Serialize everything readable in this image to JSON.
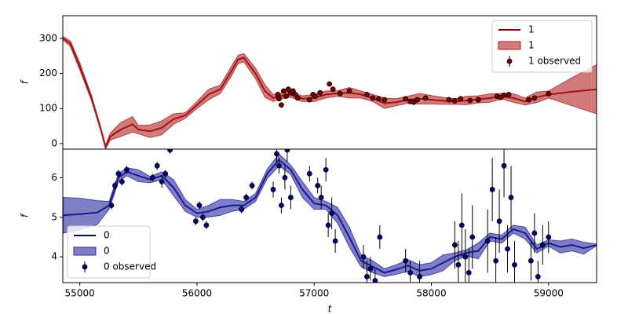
{
  "chart_data": [
    {
      "type": "line",
      "ylabel": "f",
      "xlim": [
        54855,
        59410
      ],
      "ylim": [
        -16,
        365
      ],
      "yticks": [
        0,
        100,
        200,
        300
      ],
      "legend": "upper right",
      "series": [
        {
          "name": "1",
          "color": "#800000",
          "x": [
            54860,
            54920,
            55000,
            55100,
            55180,
            55220,
            55260,
            55350,
            55450,
            55500,
            55600,
            55700,
            55800,
            55900,
            56000,
            56100,
            56200,
            56300,
            56350,
            56400,
            56500,
            56580,
            56650,
            56700,
            56800,
            56900,
            57000,
            57100,
            57200,
            57300,
            57400,
            57500,
            57600,
            57700,
            57800,
            57900,
            58000,
            58100,
            58200,
            58300,
            58400,
            58500,
            58600,
            58700,
            58800,
            58900,
            59000,
            59200,
            59410
          ],
          "values": [
            300,
            285,
            220,
            130,
            40,
            -10,
            20,
            40,
            55,
            40,
            35,
            45,
            70,
            80,
            110,
            140,
            155,
            210,
            240,
            245,
            200,
            150,
            130,
            135,
            140,
            128,
            130,
            140,
            143,
            145,
            140,
            130,
            115,
            118,
            125,
            128,
            125,
            122,
            120,
            123,
            126,
            130,
            135,
            130,
            120,
            132,
            140,
            148,
            155
          ]
        },
        {
          "name": "1",
          "color": "#b22222",
          "type": "band",
          "x": [
            54860,
            54920,
            55000,
            55100,
            55180,
            55220,
            55260,
            55350,
            55450,
            55500,
            55600,
            55700,
            55800,
            55900,
            56000,
            56100,
            56200,
            56300,
            56350,
            56400,
            56500,
            56580,
            56650,
            56700,
            56800,
            56900,
            57000,
            57100,
            57200,
            57300,
            57400,
            57500,
            57600,
            57700,
            57800,
            57900,
            58000,
            58100,
            58200,
            58300,
            58400,
            58500,
            58600,
            58700,
            58800,
            58900,
            59000,
            59200,
            59410
          ],
          "lower": [
            295,
            277,
            210,
            122,
            34,
            -16,
            10,
            20,
            33,
            28,
            17,
            25,
            55,
            72,
            100,
            125,
            143,
            196,
            228,
            233,
            185,
            132,
            120,
            127,
            132,
            120,
            120,
            130,
            135,
            130,
            130,
            120,
            100,
            108,
            115,
            113,
            113,
            112,
            112,
            111,
            116,
            118,
            127,
            118,
            110,
            117,
            130,
            108,
            85
          ],
          "upper": [
            305,
            293,
            230,
            138,
            46,
            -4,
            30,
            60,
            77,
            52,
            53,
            65,
            85,
            88,
            120,
            155,
            167,
            224,
            252,
            257,
            215,
            168,
            140,
            143,
            148,
            136,
            140,
            150,
            151,
            160,
            150,
            140,
            130,
            128,
            135,
            143,
            137,
            132,
            128,
            135,
            136,
            142,
            143,
            142,
            130,
            147,
            150,
            188,
            225
          ]
        },
        {
          "name": "1 observed",
          "color": "#800000",
          "type": "errorbar",
          "x": [
            56690,
            56700,
            56720,
            56740,
            56760,
            56780,
            56800,
            56820,
            56840,
            56860,
            56960,
            56990,
            57010,
            57050,
            57130,
            57160,
            57220,
            57300,
            57450,
            57500,
            57550,
            57600,
            57780,
            57820,
            57850,
            57880,
            57950,
            58150,
            58200,
            58250,
            58330,
            58400,
            58560,
            58590,
            58620,
            58660,
            58830,
            58880,
            59000
          ],
          "values": [
            140,
            128,
            110,
            150,
            135,
            155,
            145,
            150,
            140,
            130,
            125,
            140,
            135,
            145,
            170,
            155,
            143,
            150,
            140,
            130,
            128,
            125,
            128,
            120,
            118,
            125,
            130,
            125,
            122,
            128,
            123,
            125,
            135,
            132,
            138,
            140,
            125,
            130,
            142
          ]
        }
      ]
    },
    {
      "type": "line",
      "ylabel": "f",
      "xlabel": "t",
      "xlim": [
        54855,
        59410
      ],
      "ylim": [
        3.35,
        6.72
      ],
      "yticks": [
        4,
        5,
        6
      ],
      "xticks": [
        55000,
        56000,
        57000,
        58000,
        59000
      ],
      "legend": "lower left",
      "series": [
        {
          "name": "0",
          "color": "#000080",
          "x": [
            54860,
            55000,
            55150,
            55250,
            55330,
            55400,
            55500,
            55600,
            55700,
            55800,
            55900,
            56000,
            56100,
            56200,
            56300,
            56400,
            56500,
            56600,
            56700,
            56800,
            56900,
            57000,
            57100,
            57200,
            57300,
            57400,
            57500,
            57600,
            57700,
            57800,
            57900,
            58000,
            58100,
            58200,
            58300,
            58400,
            58500,
            58600,
            58700,
            58800,
            58900,
            59000,
            59100,
            59200,
            59300,
            59410
          ],
          "values": [
            5.05,
            5.08,
            5.12,
            5.3,
            6.0,
            6.15,
            6.05,
            5.95,
            6.05,
            5.75,
            5.3,
            5.1,
            5.15,
            5.25,
            5.3,
            5.3,
            5.5,
            6.1,
            6.45,
            6.2,
            5.7,
            5.35,
            5.3,
            5.05,
            4.5,
            3.9,
            3.75,
            3.6,
            3.68,
            3.78,
            3.65,
            3.7,
            3.85,
            4.0,
            4.1,
            4.15,
            4.5,
            4.45,
            4.7,
            4.6,
            4.2,
            4.35,
            4.25,
            4.3,
            4.22,
            4.3
          ]
        },
        {
          "name": "0",
          "color": "#2a2aa0",
          "type": "band",
          "x": [
            54860,
            55000,
            55150,
            55250,
            55330,
            55400,
            55500,
            55600,
            55700,
            55800,
            55900,
            56000,
            56100,
            56200,
            56300,
            56400,
            56500,
            56600,
            56700,
            56800,
            56900,
            57000,
            57100,
            57200,
            57300,
            57400,
            57500,
            57600,
            57700,
            57800,
            57900,
            58000,
            58100,
            58200,
            58300,
            58400,
            58500,
            58600,
            58700,
            58800,
            58900,
            59000,
            59100,
            59200,
            59300,
            59410
          ],
          "lower": [
            4.6,
            4.68,
            4.82,
            5.2,
            5.9,
            6.05,
            5.9,
            5.87,
            5.95,
            5.55,
            5.15,
            5.0,
            5.0,
            5.05,
            5.15,
            5.2,
            5.4,
            5.98,
            6.3,
            6.08,
            5.5,
            5.2,
            5.2,
            4.85,
            4.25,
            3.75,
            3.6,
            3.5,
            3.56,
            3.63,
            3.5,
            3.55,
            3.65,
            3.9,
            4.02,
            3.95,
            4.4,
            4.35,
            4.6,
            4.45,
            4.1,
            4.27,
            4.1,
            4.15,
            4.07,
            4.28
          ],
          "upper": [
            5.5,
            5.48,
            5.42,
            5.4,
            6.1,
            6.25,
            6.2,
            6.03,
            6.15,
            5.95,
            5.45,
            5.2,
            5.3,
            5.45,
            5.45,
            5.4,
            5.6,
            6.22,
            6.6,
            6.32,
            5.9,
            5.5,
            5.4,
            5.25,
            4.75,
            4.05,
            3.9,
            3.7,
            3.8,
            3.93,
            3.8,
            3.85,
            4.05,
            4.1,
            4.18,
            4.35,
            4.6,
            4.55,
            4.8,
            4.75,
            4.3,
            4.43,
            4.4,
            4.45,
            4.37,
            4.32
          ]
        },
        {
          "name": "0 observed",
          "color": "#000080",
          "type": "errorbar",
          "x": [
            55270,
            55300,
            55330,
            55360,
            55400,
            55620,
            55660,
            55700,
            55730,
            55770,
            55990,
            56020,
            56050,
            56080,
            56380,
            56420,
            56470,
            56650,
            56680,
            56700,
            56720,
            56750,
            56770,
            56800,
            56960,
            57030,
            57060,
            57100,
            57120,
            57150,
            57180,
            57420,
            57450,
            57480,
            57520,
            57560,
            57780,
            57820,
            57900,
            58200,
            58230,
            58260,
            58290,
            58320,
            58350,
            58480,
            58520,
            58550,
            58580,
            58620,
            58650,
            58680,
            58710,
            58850,
            58880,
            58910,
            58950,
            59000
          ],
          "values": [
            5.3,
            5.8,
            6.1,
            5.9,
            6.2,
            6.0,
            6.3,
            5.9,
            6.1,
            6.7,
            4.9,
            5.3,
            5.0,
            4.8,
            5.2,
            5.5,
            5.8,
            5.7,
            6.6,
            6.3,
            5.3,
            6.0,
            6.7,
            5.5,
            6.1,
            5.8,
            5.5,
            6.2,
            4.8,
            5.1,
            4.4,
            4.0,
            3.5,
            3.7,
            3.4,
            4.5,
            3.9,
            3.6,
            3.5,
            4.3,
            3.8,
            4.8,
            4.0,
            3.6,
            4.5,
            4.4,
            5.7,
            3.9,
            4.9,
            6.3,
            4.2,
            5.5,
            3.8,
            3.9,
            4.6,
            3.5,
            4.3,
            4.5
          ],
          "errors": [
            0.1,
            0.1,
            0.1,
            0.1,
            0.1,
            0.1,
            0.1,
            0.15,
            0.1,
            0.1,
            0.1,
            0.1,
            0.1,
            0.1,
            0.1,
            0.1,
            0.1,
            0.2,
            0.2,
            0.2,
            0.2,
            0.3,
            0.3,
            0.3,
            0.2,
            0.2,
            0.3,
            0.3,
            0.3,
            0.4,
            0.3,
            0.3,
            0.4,
            0.3,
            0.3,
            0.3,
            0.3,
            0.3,
            0.4,
            0.6,
            0.6,
            0.8,
            0.7,
            0.6,
            0.8,
            0.8,
            0.8,
            0.6,
            0.8,
            0.8,
            0.6,
            0.8,
            0.6,
            0.5,
            0.5,
            0.4,
            0.5,
            0.4
          ]
        }
      ]
    }
  ]
}
